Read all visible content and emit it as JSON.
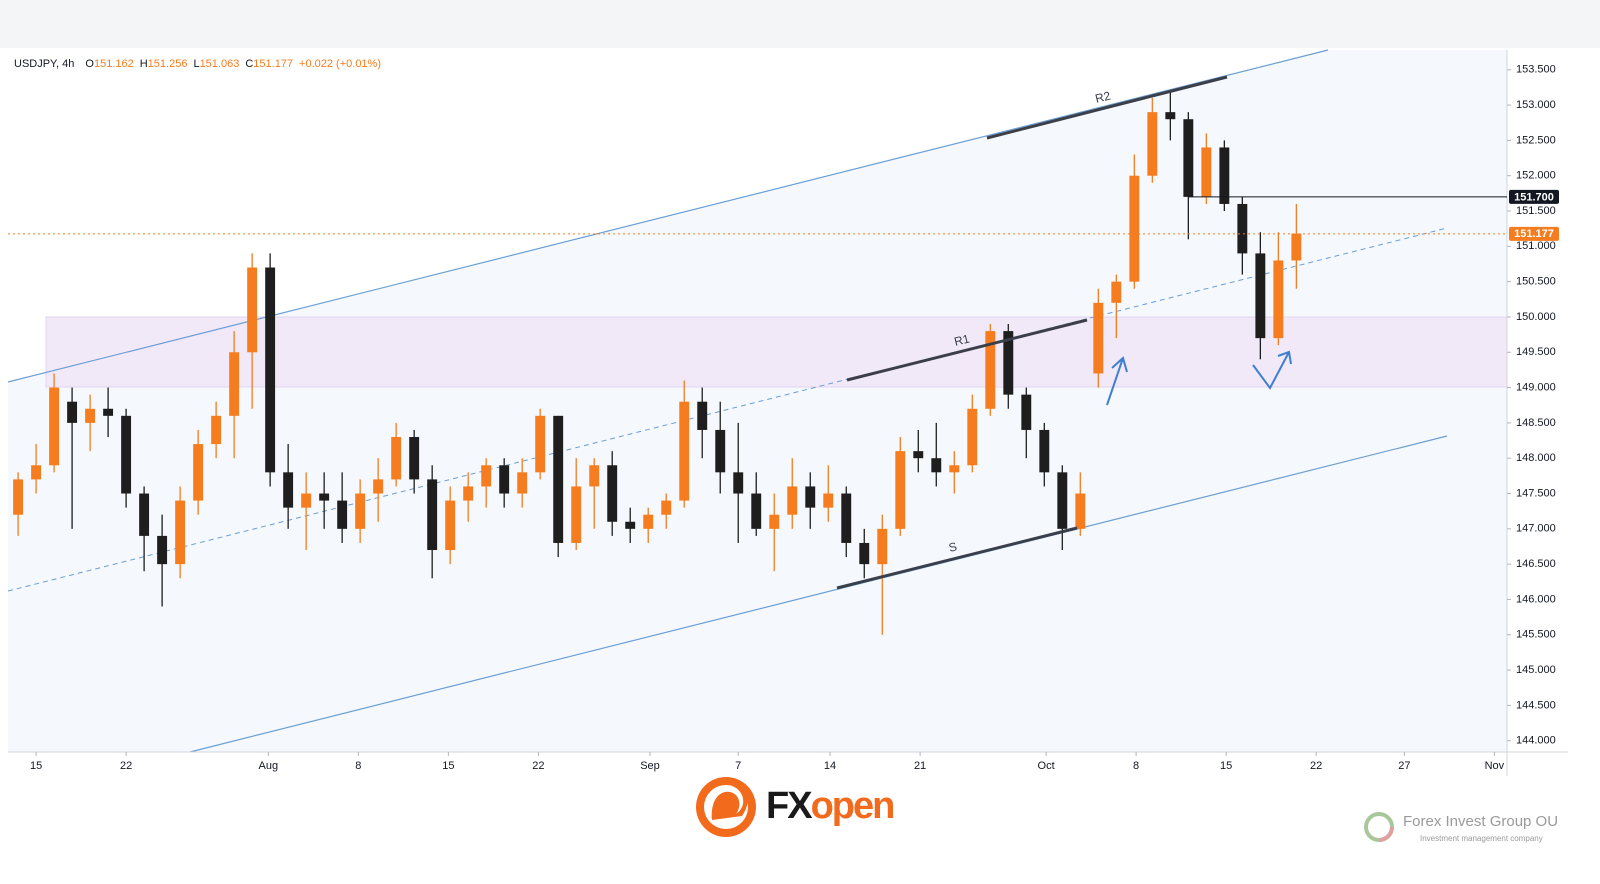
{
  "header": {
    "symbol": "USDJPY, 4h",
    "ohlc": [
      {
        "key": "O",
        "value": "151.162"
      },
      {
        "key": "H",
        "value": "151.256"
      },
      {
        "key": "L",
        "value": "151.063"
      },
      {
        "key": "C",
        "value": "151.177"
      }
    ],
    "change": "+0.022 (+0.01%)"
  },
  "chart_data": {
    "type": "candlestick",
    "up_color": "#f57c1f",
    "down_color": "#1e1e1e",
    "x": [
      -1,
      0,
      1,
      2,
      3,
      4,
      5,
      6,
      7,
      8,
      9,
      10,
      11,
      12,
      13,
      14,
      15,
      16,
      17,
      18,
      19,
      20,
      21,
      22,
      23,
      24,
      25,
      26,
      27,
      28,
      29,
      30,
      31,
      32,
      33,
      34,
      35,
      36,
      37,
      38,
      39,
      40,
      41,
      42,
      43,
      44,
      45,
      46,
      47,
      48,
      49,
      50,
      51,
      52,
      53,
      54,
      55,
      56,
      57,
      58,
      59,
      60,
      61,
      62,
      63,
      64,
      65,
      66,
      67,
      68,
      69,
      70
    ],
    "open": [
      147.2,
      147.7,
      147.9,
      148.8,
      148.5,
      148.7,
      148.6,
      147.5,
      146.9,
      146.5,
      147.4,
      148.2,
      148.6,
      149.5,
      150.7,
      147.8,
      147.3,
      147.5,
      147.4,
      147.0,
      147.5,
      147.7,
      148.3,
      147.7,
      146.7,
      147.4,
      147.6,
      147.9,
      147.5,
      147.8,
      148.6,
      146.8,
      147.6,
      147.9,
      147.1,
      147.0,
      147.2,
      147.4,
      148.8,
      148.4,
      147.8,
      147.5,
      147.0,
      147.2,
      147.6,
      147.3,
      147.5,
      146.8,
      146.5,
      147.0,
      148.1,
      148.0,
      147.8,
      147.9,
      148.7,
      149.8,
      148.9,
      148.4,
      147.8,
      147.0,
      149.2,
      150.2,
      150.5,
      152.0,
      152.9,
      152.8,
      151.7,
      152.4,
      151.6,
      150.9,
      149.7,
      150.8
    ],
    "high": [
      147.8,
      148.2,
      149.2,
      149.0,
      148.9,
      149.0,
      148.7,
      147.6,
      147.2,
      147.6,
      148.4,
      148.8,
      149.8,
      150.9,
      150.9,
      148.2,
      147.8,
      147.8,
      147.8,
      147.7,
      148.0,
      148.5,
      148.4,
      147.9,
      147.6,
      147.8,
      148.0,
      148.0,
      148.0,
      148.7,
      148.6,
      148.0,
      148.0,
      148.1,
      147.3,
      147.3,
      147.5,
      149.1,
      149.0,
      148.8,
      148.5,
      147.8,
      147.5,
      148.0,
      147.8,
      147.9,
      147.6,
      147.0,
      147.2,
      148.3,
      148.4,
      148.5,
      148.1,
      148.9,
      149.9,
      149.9,
      149.0,
      148.5,
      147.9,
      147.8,
      150.4,
      150.6,
      152.3,
      153.1,
      153.2,
      152.9,
      152.6,
      152.5,
      151.7,
      151.2,
      151.2,
      151.6
    ],
    "low": [
      146.9,
      147.5,
      147.8,
      147.0,
      148.1,
      148.3,
      147.3,
      146.4,
      145.9,
      146.3,
      147.2,
      148.0,
      148.0,
      148.7,
      147.6,
      147.0,
      146.7,
      147.0,
      146.8,
      146.8,
      147.1,
      147.6,
      147.5,
      146.3,
      146.5,
      147.1,
      147.3,
      147.3,
      147.3,
      147.7,
      146.6,
      146.7,
      147.0,
      146.9,
      146.8,
      146.8,
      147.0,
      147.3,
      148.0,
      147.5,
      146.8,
      146.9,
      146.4,
      147.0,
      147.0,
      147.1,
      146.6,
      146.3,
      145.5,
      146.9,
      147.8,
      147.6,
      147.5,
      147.8,
      148.6,
      148.7,
      148.0,
      147.6,
      146.7,
      146.9,
      149.0,
      149.7,
      150.4,
      151.9,
      152.5,
      151.1,
      151.6,
      151.5,
      150.6,
      149.4,
      149.6,
      150.4
    ],
    "close": [
      147.7,
      147.9,
      149.0,
      148.5,
      148.7,
      148.6,
      147.5,
      146.9,
      146.5,
      147.4,
      148.2,
      148.6,
      149.5,
      150.7,
      147.8,
      147.3,
      147.5,
      147.4,
      147.0,
      147.5,
      147.7,
      148.3,
      147.7,
      146.7,
      147.4,
      147.6,
      147.9,
      147.5,
      147.8,
      148.6,
      146.8,
      147.6,
      147.9,
      147.1,
      147.0,
      147.2,
      147.4,
      148.8,
      148.4,
      147.8,
      147.5,
      147.0,
      147.2,
      147.6,
      147.3,
      147.5,
      146.8,
      146.5,
      147.0,
      148.1,
      148.0,
      147.8,
      147.9,
      148.7,
      149.8,
      148.9,
      148.4,
      147.8,
      147.0,
      147.5,
      150.2,
      150.5,
      152.0,
      152.9,
      152.8,
      151.7,
      152.4,
      151.6,
      150.9,
      149.7,
      150.8,
      151.18
    ],
    "xlim": [
      -1.56,
      81.7
    ],
    "xticks": [
      {
        "value": 0,
        "label": "15"
      },
      {
        "value": 5,
        "label": "22"
      },
      {
        "value": 12.9,
        "label": "Aug"
      },
      {
        "value": 17.9,
        "label": "8"
      },
      {
        "value": 22.9,
        "label": "15"
      },
      {
        "value": 27.9,
        "label": "22"
      },
      {
        "value": 34.1,
        "label": "Sep"
      },
      {
        "value": 39,
        "label": "7"
      },
      {
        "value": 44.1,
        "label": "14"
      },
      {
        "value": 49.1,
        "label": "21"
      },
      {
        "value": 56.1,
        "label": "Oct"
      },
      {
        "value": 61.1,
        "label": "8"
      },
      {
        "value": 66.1,
        "label": "15"
      },
      {
        "value": 71.1,
        "label": "22"
      },
      {
        "value": 76,
        "label": "27"
      },
      {
        "value": 81,
        "label": "Nov"
      }
    ],
    "ylim": [
      143.84,
      153.78
    ],
    "yticks": [
      {
        "value": 144,
        "label": "144.000"
      },
      {
        "value": 144.5,
        "label": "144.500"
      },
      {
        "value": 145,
        "label": "145.000"
      },
      {
        "value": 145.5,
        "label": "145.500"
      },
      {
        "value": 146,
        "label": "146.000"
      },
      {
        "value": 146.5,
        "label": "146.500"
      },
      {
        "value": 147,
        "label": "147.000"
      },
      {
        "value": 147.5,
        "label": "147.500"
      },
      {
        "value": 148,
        "label": "148.000"
      },
      {
        "value": 148.5,
        "label": "148.500"
      },
      {
        "value": 149,
        "label": "149.000"
      },
      {
        "value": 149.5,
        "label": "149.500"
      },
      {
        "value": 150,
        "label": "150.000"
      },
      {
        "value": 150.5,
        "label": "150.500"
      },
      {
        "value": 151,
        "label": "151.000"
      },
      {
        "value": 151.5,
        "label": "151.500"
      },
      {
        "value": 152,
        "label": "152.000"
      },
      {
        "value": 152.5,
        "label": "152.500"
      },
      {
        "value": 153,
        "label": "153.000"
      },
      {
        "value": 153.5,
        "label": "153.500"
      }
    ],
    "hlines": [
      {
        "value": 151.7,
        "label": "151.700",
        "color": "#131722",
        "dash": false
      },
      {
        "value": 151.177,
        "label": "151.177",
        "color": "#f57c1f",
        "dash": true
      }
    ],
    "annotations": [
      "R2",
      "R1",
      "S"
    ]
  },
  "footer": {
    "logo_fx": "FX",
    "logo_open": "open",
    "company": "Forex Invest Group OU",
    "tagline": "Investment management company"
  }
}
